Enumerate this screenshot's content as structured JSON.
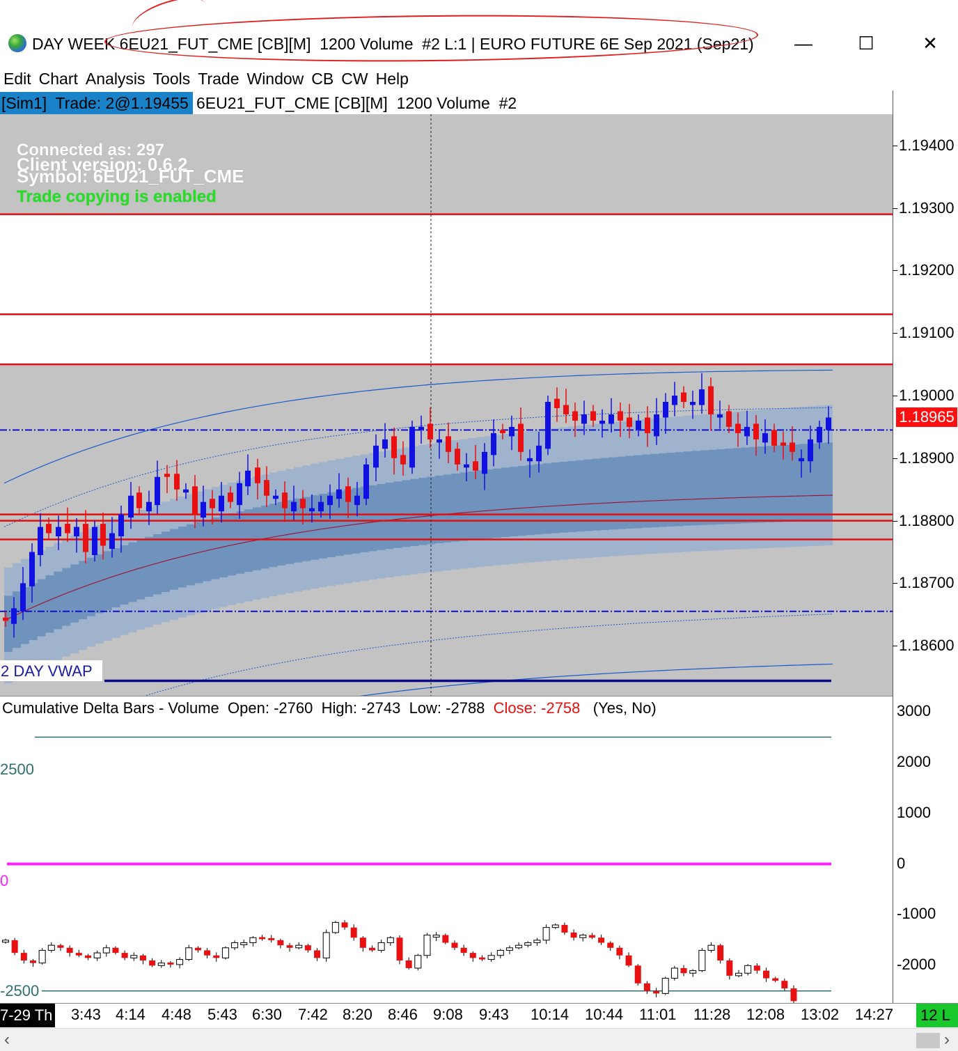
{
  "window": {
    "title": "DAY WEEK 6EU21_FUT_CME [CB][M]  1200 Volume  #2 L:1 | EURO FUTURE 6E Sep 2021 (Sep21)",
    "minimize_glyph": "—",
    "maximize_glyph": "☐",
    "close_glyph": "✕"
  },
  "menu": [
    "Edit",
    "Chart",
    "Analysis",
    "Tools",
    "Trade",
    "Window",
    "CB",
    "CW",
    "Help"
  ],
  "infobar": {
    "account_trade": "[Sim1]  Trade: 2@1.19455",
    "symbol_text": "6EU21_FUT_CME [CB][M]  1200 Volume  #2"
  },
  "overlay": {
    "connected": "Connected as: 297",
    "client_version": "Client version: 0.6.2",
    "symbol": "Symbol: 6EU21_FUT_CME",
    "copying": "Trade copying is enabled"
  },
  "vwap_label": "2 DAY VWAP",
  "price_axis": {
    "ticks": [
      "1.19400",
      "1.19300",
      "1.19200",
      "1.19100",
      "1.19000",
      "1.18900",
      "1.18800",
      "1.18700",
      "1.18600"
    ],
    "last_price": "1.18965"
  },
  "lower_panel": {
    "name": "Cumulative Delta Bars - Volume",
    "open": "Open: -2760",
    "high": "High: -2743",
    "low": "Low: -2788",
    "close": "Close: -2758",
    "params": "(Yes, No)",
    "axis_ticks": [
      "3000",
      "2000",
      "1000",
      "0",
      "-1000",
      "-2000"
    ],
    "level_labels": [
      "2500",
      "0",
      "-2500"
    ]
  },
  "time_axis": {
    "start": "7-29 Th",
    "labels": [
      "3:43",
      "4:14",
      "4:48",
      "5:43",
      "6:30",
      "7:42",
      "8:20",
      "8:46",
      "9:08",
      "9:43",
      "10:14",
      "10:44",
      "11:01",
      "11:28",
      "12:08",
      "13:02",
      "14:27"
    ],
    "end": "12 L"
  },
  "colors": {
    "up_candle": "#1010e0",
    "down_candle": "#e81010",
    "level_line": "#e01010",
    "dashdot_line": "#1010cc",
    "panel_bg": "#c3c3c3",
    "band_outer": "#9fb3cc",
    "band_inner": "#6f93bd",
    "zero_line": "#ff20ff",
    "band_line": "#2f6f6f"
  },
  "chart_data": [
    {
      "type": "candlestick",
      "ylim": [
        1.1852,
        1.1945
      ],
      "ticks": [
        1.194,
        1.193,
        1.192,
        1.191,
        1.19,
        1.189,
        1.188,
        1.187,
        1.186
      ],
      "horizontal_levels": [
        1.1929,
        1.1913,
        1.1905,
        1.1881,
        1.188,
        1.1877
      ],
      "dashdot_levels": [
        1.18945,
        1.18655
      ],
      "vwap_level": 1.18544,
      "last_price": 1.18965
    },
    {
      "type": "candlestick",
      "name": "Cumulative Delta Bars - Volume",
      "ylim": [
        -2750,
        3300
      ],
      "ticks": [
        3000,
        2000,
        1000,
        0,
        -1000,
        -2000
      ],
      "levels": [
        2500,
        0,
        -2500
      ],
      "last_bar": {
        "open": -2760,
        "high": -2743,
        "low": -2788,
        "close": -2758
      }
    }
  ]
}
